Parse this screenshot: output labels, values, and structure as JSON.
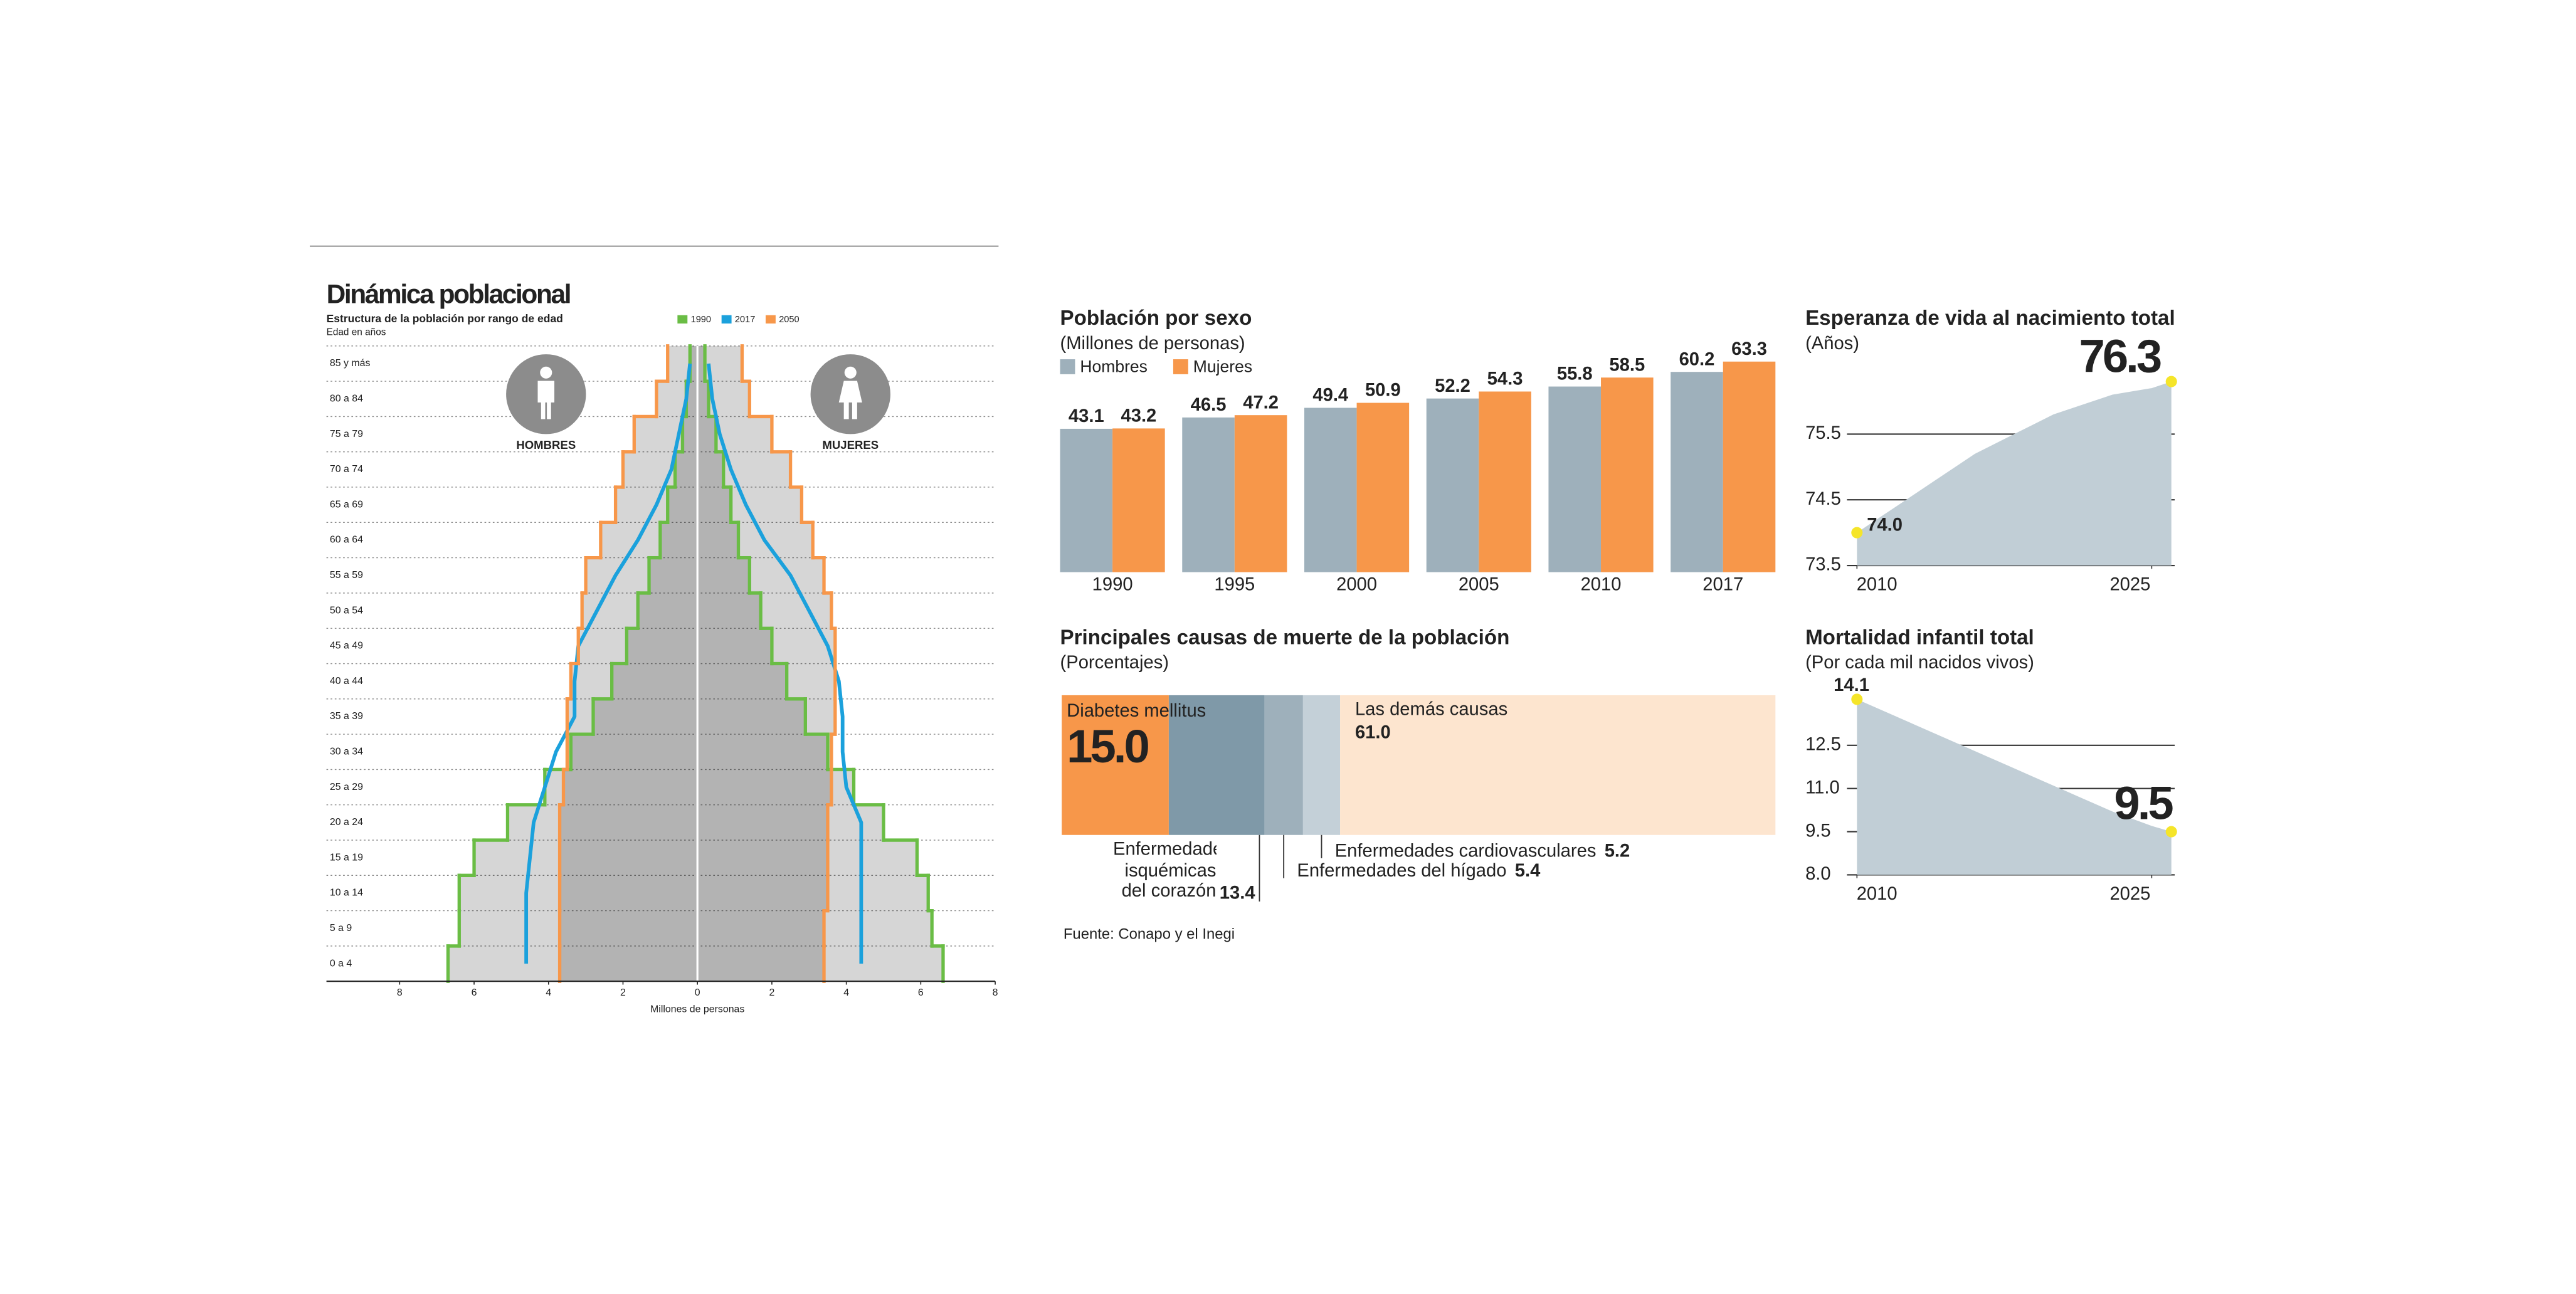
{
  "chart_data": [
    {
      "type": "pyramid",
      "title": "Dinámica poblacional",
      "subtitle": "Estructura de la población por rango de edad",
      "y_label": "Edad en años",
      "x_label": "Millones de personas",
      "left_label": "HOMBRES",
      "right_label": "MUJERES",
      "categories": [
        "0 a 4",
        "5 a 9",
        "10 a 14",
        "15 a 19",
        "20 a 24",
        "25 a 29",
        "30 a 34",
        "35 a 39",
        "40 a 44",
        "45 a 49",
        "50 a 54",
        "55 a 59",
        "60 a 64",
        "65 a 69",
        "70 a 74",
        "75 a 79",
        "80 a 84",
        "85 y más"
      ],
      "series": [
        {
          "name": "1990",
          "color": "#6abd45",
          "area": true,
          "men": [
            6.7,
            6.4,
            6.4,
            6.0,
            5.1,
            4.1,
            3.4,
            2.8,
            2.3,
            1.9,
            1.6,
            1.3,
            1.0,
            0.8,
            0.6,
            0.4,
            0.3,
            0.2
          ],
          "women": [
            6.6,
            6.3,
            6.2,
            5.9,
            5.0,
            4.2,
            3.5,
            2.9,
            2.4,
            2.0,
            1.7,
            1.4,
            1.1,
            0.9,
            0.7,
            0.5,
            0.3,
            0.2
          ]
        },
        {
          "name": "2017",
          "color": "#1ba1dc",
          "area": false,
          "men": [
            4.6,
            4.6,
            4.6,
            4.5,
            4.4,
            4.1,
            3.8,
            3.3,
            3.3,
            3.2,
            2.7,
            2.2,
            1.6,
            1.1,
            0.7,
            0.5,
            0.3,
            0.2
          ],
          "women": [
            4.4,
            4.4,
            4.4,
            4.4,
            4.4,
            4.0,
            3.9,
            3.9,
            3.8,
            3.5,
            3.0,
            2.5,
            1.8,
            1.3,
            0.9,
            0.6,
            0.4,
            0.3
          ]
        },
        {
          "name": "2050",
          "color": "#f7974a",
          "area": true,
          "men": [
            3.7,
            3.7,
            3.7,
            3.7,
            3.7,
            3.6,
            3.5,
            3.5,
            3.4,
            3.2,
            3.1,
            3.0,
            2.6,
            2.2,
            2.0,
            1.7,
            1.1,
            0.8
          ],
          "women": [
            3.4,
            3.4,
            3.5,
            3.5,
            3.5,
            3.6,
            3.6,
            3.7,
            3.7,
            3.7,
            3.6,
            3.4,
            3.1,
            2.8,
            2.5,
            2.0,
            1.4,
            1.2
          ]
        }
      ],
      "xlim": [
        -8,
        8
      ],
      "xticks": [
        {
          "value": -8,
          "label": "8"
        },
        {
          "value": -6,
          "label": "6"
        },
        {
          "value": -4,
          "label": "4"
        },
        {
          "value": -2,
          "label": "2"
        },
        0,
        2,
        4,
        6,
        8
      ]
    },
    {
      "type": "bar",
      "title": "Población por sexo",
      "subtitle": "(Millones de personas)",
      "categories": [
        "1990",
        "1995",
        "2000",
        "2005",
        "2010",
        "2017"
      ],
      "series": [
        {
          "name": "Hombres",
          "color": "#9eb0bb",
          "values": [
            43.1,
            46.5,
            49.4,
            52.2,
            55.8,
            60.2
          ]
        },
        {
          "name": "Mujeres",
          "color": "#f7974a",
          "values": [
            43.2,
            47.2,
            50.9,
            54.3,
            58.5,
            63.3
          ]
        }
      ],
      "ylim": [
        0,
        70
      ]
    },
    {
      "type": "stacked_bar",
      "title": "Principales causas de muerte de la población",
      "subtitle": "(Porcentajes)",
      "categories": [
        "Diabetes mellitus",
        "Enfermedades isquémicas del corazón",
        "Enfermedades del hígado",
        "Enfermedades cardiovasculares",
        "Las demás causas"
      ],
      "values": [
        15.0,
        13.4,
        5.4,
        5.2,
        61.0
      ],
      "value_labels": [
        "15.0",
        "13.4",
        "5.4",
        "5.2",
        "61.0"
      ],
      "colors": [
        "#f7974a",
        "#7f99a8",
        "#9eb0bb",
        "#c4d0d8",
        "#fde5cf"
      ],
      "xlim": [
        0,
        100
      ],
      "source": "Fuente: Conapo y el Inegi"
    },
    {
      "type": "area",
      "title": "Esperanza de vida al nacimiento total",
      "subtitle": "(Años)",
      "color": "#c1ced6",
      "marker_color": "#f5e52a",
      "x": [
        2010,
        2011,
        2012,
        2013,
        2014,
        2015,
        2016,
        2017,
        2018,
        2019,
        2020,
        2021,
        2022,
        2023,
        2024,
        2025,
        2026
      ],
      "values": [
        74.0,
        74.2,
        74.4,
        74.6,
        74.8,
        75.0,
        75.2,
        75.35,
        75.5,
        75.65,
        75.8,
        75.9,
        76.0,
        76.1,
        76.15,
        76.2,
        76.3
      ],
      "value_labels": [
        "74.0",
        null,
        null,
        null,
        null,
        null,
        null,
        null,
        null,
        null,
        null,
        null,
        null,
        null,
        null,
        null,
        "76.3"
      ],
      "xlim": [
        2010,
        2026
      ],
      "xticks": [
        2010,
        2025
      ],
      "ylim": [
        73.5,
        76.5
      ],
      "yticks": [
        73.5,
        74.5,
        75.5
      ],
      "grid": true
    },
    {
      "type": "area",
      "title": "Mortalidad infantil total",
      "subtitle": "(Por cada mil nacidos vivos)",
      "color": "#c1ced6",
      "marker_color": "#f5e52a",
      "x": [
        2010,
        2011,
        2012,
        2013,
        2014,
        2015,
        2016,
        2017,
        2018,
        2019,
        2020,
        2021,
        2022,
        2023,
        2024,
        2025,
        2026
      ],
      "values": [
        14.1,
        13.8,
        13.5,
        13.2,
        12.9,
        12.6,
        12.3,
        12.0,
        11.7,
        11.4,
        11.1,
        10.8,
        10.5,
        10.2,
        9.95,
        9.7,
        9.5
      ],
      "value_labels": [
        "14.1",
        null,
        null,
        null,
        null,
        null,
        null,
        null,
        null,
        null,
        null,
        null,
        null,
        null,
        null,
        null,
        "9.5"
      ],
      "xlim": [
        2010,
        2026
      ],
      "xticks": [
        2010,
        2025
      ],
      "ylim": [
        8,
        14.5
      ],
      "yticks": [
        {
          "value": 8,
          "label": "8.0"
        },
        9.5,
        {
          "value": 11,
          "label": "11.0"
        },
        12.5
      ],
      "grid": true
    }
  ]
}
